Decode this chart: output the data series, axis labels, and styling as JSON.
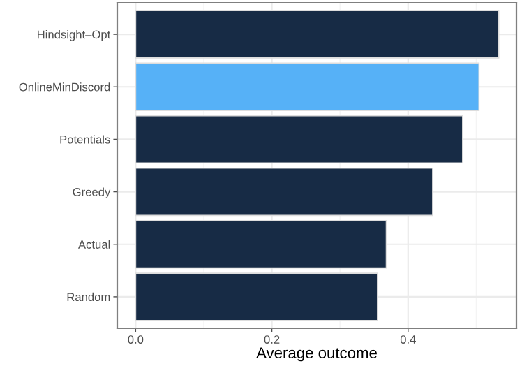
{
  "chart_data": {
    "type": "bar",
    "orientation": "horizontal",
    "xlabel": "Average outcome",
    "categories": [
      "Hindsight–Opt",
      "OnlineMinDiscord",
      "Potentials",
      "Greedy",
      "Actual",
      "Random"
    ],
    "values": [
      0.533,
      0.504,
      0.48,
      0.436,
      0.368,
      0.355
    ],
    "colors": [
      "#172b45",
      "#56b1f7",
      "#172b45",
      "#172b45",
      "#172b45",
      "#172b45"
    ],
    "xlim": [
      -0.027,
      0.559
    ],
    "xticks": [
      {
        "value": 0,
        "label": "0.0"
      },
      0.2,
      0.4
    ],
    "grid": true
  }
}
